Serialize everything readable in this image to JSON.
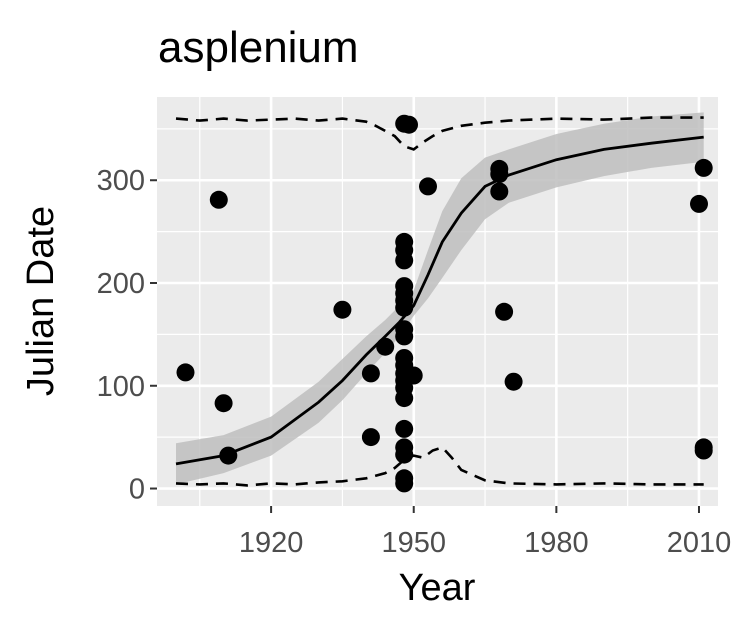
{
  "chart_data": {
    "type": "scatter",
    "title": "asplenium",
    "xlabel": "Year",
    "ylabel": "Julian Date",
    "xlim": [
      1896,
      2014
    ],
    "ylim": [
      -17,
      381
    ],
    "x_ticks": [
      1920,
      1950,
      1980,
      2010
    ],
    "y_ticks": [
      0,
      100,
      200,
      300
    ],
    "x_minor_ticks": [
      1905,
      1935,
      1965,
      1995
    ],
    "y_minor_ticks": [
      50,
      150,
      250,
      350
    ],
    "x_tick_labels": [
      "1920",
      "1950",
      "1980",
      "2010"
    ],
    "y_tick_labels": [
      "0",
      "100",
      "200",
      "300"
    ],
    "grid": true,
    "legend": "none",
    "colors": {
      "panel": "#ebebeb",
      "grid": "#ffffff",
      "points": "#000000",
      "fit_line": "#000000",
      "confidence_band": "#bebebe",
      "envelope": "#000000"
    },
    "points": [
      {
        "x": 1902,
        "y": 113
      },
      {
        "x": 1909,
        "y": 281
      },
      {
        "x": 1910,
        "y": 83
      },
      {
        "x": 1911,
        "y": 32
      },
      {
        "x": 1935,
        "y": 174
      },
      {
        "x": 1941,
        "y": 112
      },
      {
        "x": 1941,
        "y": 50
      },
      {
        "x": 1944,
        "y": 138
      },
      {
        "x": 1948,
        "y": 355
      },
      {
        "x": 1949,
        "y": 354
      },
      {
        "x": 1953,
        "y": 294
      },
      {
        "x": 1948,
        "y": 240
      },
      {
        "x": 1948,
        "y": 232
      },
      {
        "x": 1948,
        "y": 222
      },
      {
        "x": 1948,
        "y": 197
      },
      {
        "x": 1948,
        "y": 190
      },
      {
        "x": 1948,
        "y": 183
      },
      {
        "x": 1948,
        "y": 176
      },
      {
        "x": 1948,
        "y": 155
      },
      {
        "x": 1948,
        "y": 148
      },
      {
        "x": 1948,
        "y": 127
      },
      {
        "x": 1948,
        "y": 120
      },
      {
        "x": 1948,
        "y": 112
      },
      {
        "x": 1948,
        "y": 105
      },
      {
        "x": 1948,
        "y": 98
      },
      {
        "x": 1948,
        "y": 88
      },
      {
        "x": 1948,
        "y": 58
      },
      {
        "x": 1948,
        "y": 40
      },
      {
        "x": 1948,
        "y": 33
      },
      {
        "x": 1948,
        "y": 10
      },
      {
        "x": 1948,
        "y": 5
      },
      {
        "x": 1950,
        "y": 110
      },
      {
        "x": 1968,
        "y": 311
      },
      {
        "x": 1968,
        "y": 306
      },
      {
        "x": 1968,
        "y": 289
      },
      {
        "x": 1969,
        "y": 172
      },
      {
        "x": 1971,
        "y": 104
      },
      {
        "x": 2010,
        "y": 277
      },
      {
        "x": 2011,
        "y": 312
      },
      {
        "x": 2011,
        "y": 40
      },
      {
        "x": 2011,
        "y": 37
      }
    ],
    "fit_line": {
      "x": [
        1900,
        1910,
        1920,
        1930,
        1935,
        1940,
        1944,
        1947,
        1950,
        1953,
        1956,
        1960,
        1965,
        1970,
        1980,
        1990,
        2000,
        2011
      ],
      "y": [
        24,
        32,
        50,
        84,
        105,
        130,
        148,
        162,
        178,
        208,
        240,
        268,
        294,
        305,
        320,
        330,
        336,
        342
      ]
    },
    "confidence_band": {
      "x": [
        1900,
        1910,
        1920,
        1930,
        1935,
        1940,
        1944,
        1947,
        1950,
        1953,
        1956,
        1960,
        1965,
        1970,
        1980,
        1990,
        2000,
        2011
      ],
      "lower": [
        4,
        15,
        32,
        64,
        86,
        112,
        132,
        148,
        168,
        185,
        205,
        232,
        262,
        278,
        293,
        304,
        312,
        318
      ],
      "upper": [
        44,
        52,
        70,
        104,
        126,
        148,
        164,
        178,
        193,
        232,
        270,
        302,
        322,
        330,
        345,
        355,
        362,
        366
      ]
    },
    "upper_envelope": {
      "x": [
        1900,
        1905,
        1910,
        1915,
        1920,
        1925,
        1930,
        1935,
        1940,
        1942,
        1944,
        1946,
        1948,
        1950,
        1952,
        1954,
        1956,
        1960,
        1965,
        1970,
        1980,
        1990,
        2000,
        2011
      ],
      "y": [
        360,
        358,
        360,
        358,
        359,
        360,
        358,
        360,
        357,
        353,
        348,
        343,
        333,
        330,
        337,
        343,
        348,
        353,
        356,
        358,
        360,
        359,
        361,
        361
      ]
    },
    "lower_envelope": {
      "x": [
        1900,
        1905,
        1910,
        1915,
        1920,
        1925,
        1930,
        1935,
        1940,
        1944,
        1946,
        1948,
        1950,
        1952,
        1954,
        1956,
        1958,
        1960,
        1965,
        1970,
        1980,
        1990,
        2000,
        2011
      ],
      "y": [
        5,
        4,
        5,
        3,
        5,
        4,
        6,
        7,
        10,
        15,
        20,
        28,
        32,
        30,
        37,
        40,
        30,
        18,
        8,
        5,
        4,
        5,
        4,
        4
      ]
    }
  }
}
